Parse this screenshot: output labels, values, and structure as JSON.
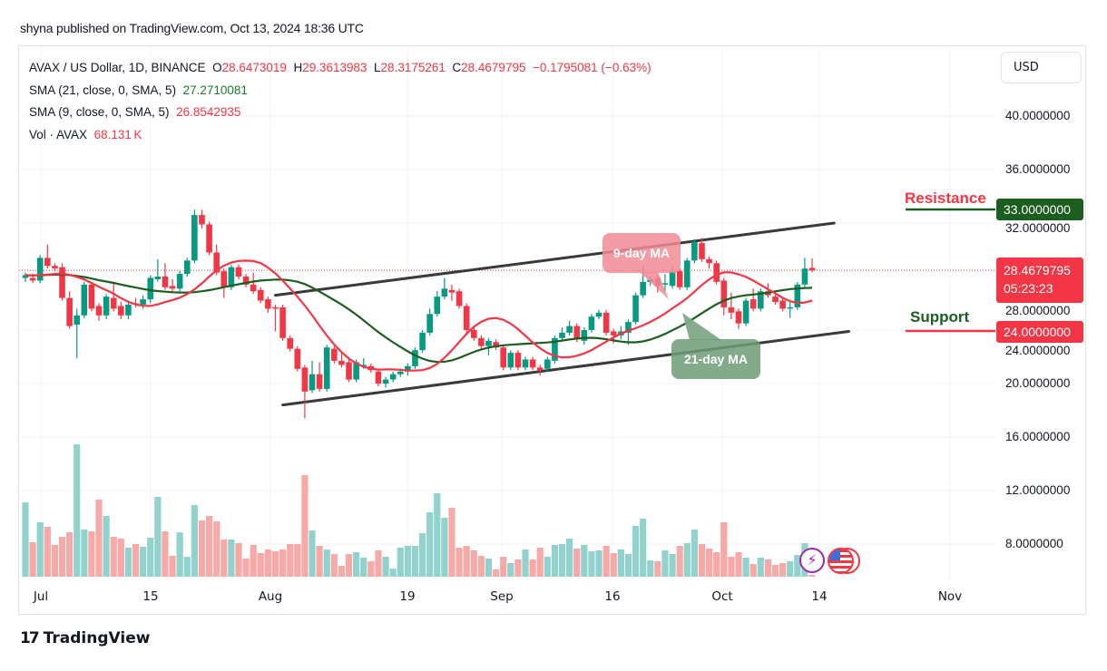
{
  "publish_line": "shyna published on TradingView.com, Oct 13, 2024 18:36 UTC",
  "legend": {
    "symbol": "AVAX / US Dollar, 1D, BINANCE",
    "open_label": "O",
    "open": "28.6473019",
    "high_label": "H",
    "high": "29.3613983",
    "low_label": "L",
    "low": "28.3175261",
    "close_label": "C",
    "close": "28.4679795",
    "change": "−0.1795081 (−0.63%)",
    "sma21_label": "SMA (21, close, 0, SMA, 5)",
    "sma21_value": "27.2710081",
    "sma9_label": "SMA (9, close, 0, SMA, 5)",
    "sma9_value": "26.8542935",
    "vol_label": "Vol · AVAX",
    "vol_value": "68.131 K"
  },
  "currency_button": "USD",
  "price_tags": {
    "resistance_value": "33.0000000",
    "current_price": "28.4679795",
    "countdown": "05:23:23",
    "support_value": "24.0000000"
  },
  "annotations": {
    "resistance_label": "Resistance",
    "support_label": "Support",
    "ma9_callout": "9-day MA",
    "ma21_callout": "21-day MA"
  },
  "brand": {
    "logo_text": "TradingView",
    "logo_mark": "17"
  },
  "icons": {
    "events": [
      "lightning-icon",
      "us-flag-icon",
      "us-flag-icon"
    ]
  },
  "colors": {
    "up": "#089981",
    "down": "#f23645",
    "vol_up": "#92d2cc",
    "vol_down": "#f7a9a7",
    "sma9": "#f23645",
    "sma21": "#1b5e20",
    "resistance_tag": "#1b5e20",
    "price_tag": "#f23645",
    "channel": "#3a3a3a"
  },
  "chart_data": {
    "type": "candlestick",
    "title": "AVAX / US Dollar, 1D, BINANCE",
    "y_ticks": [
      "40.0000000",
      "36.0000000",
      "32.0000000",
      "28.0000000",
      "24.0000000",
      "20.0000000",
      "16.0000000",
      "12.0000000",
      "8.0000000"
    ],
    "y_tick_values": [
      40,
      36,
      32,
      28,
      24,
      20,
      16,
      12,
      8
    ],
    "x_ticks": [
      "Jul",
      "15",
      "Aug",
      "19",
      "Sep",
      "16",
      "Oct",
      "14",
      "Nov"
    ],
    "ylim": [
      5.5,
      44.5
    ],
    "grid": true,
    "ohlc": [
      [
        27.9,
        28.3,
        27.6,
        28.1
      ],
      [
        27.9,
        28.2,
        27.5,
        27.7
      ],
      [
        27.7,
        29.6,
        27.5,
        29.4
      ],
      [
        29.4,
        30.4,
        28.6,
        28.8
      ],
      [
        28.8,
        29.0,
        28.4,
        28.6
      ],
      [
        28.7,
        29.0,
        26.2,
        26.4
      ],
      [
        26.4,
        26.9,
        24.1,
        24.3
      ],
      [
        24.4,
        25.6,
        21.9,
        25.1
      ],
      [
        25.1,
        27.6,
        24.9,
        27.4
      ],
      [
        27.4,
        27.6,
        25.4,
        25.6
      ],
      [
        25.8,
        26.0,
        24.7,
        25.1
      ],
      [
        25.1,
        26.7,
        24.8,
        26.5
      ],
      [
        26.4,
        27.6,
        25.4,
        25.6
      ],
      [
        25.8,
        26.1,
        24.8,
        25.1
      ],
      [
        25.1,
        26.2,
        24.8,
        25.9
      ],
      [
        26.0,
        26.4,
        25.7,
        25.9
      ],
      [
        25.9,
        26.6,
        25.6,
        26.3
      ],
      [
        26.3,
        28.1,
        26.0,
        27.9
      ],
      [
        27.8,
        29.3,
        27.6,
        28.0
      ],
      [
        28.0,
        29.0,
        27.0,
        27.2
      ],
      [
        27.3,
        27.8,
        26.8,
        27.1
      ],
      [
        27.1,
        28.4,
        26.9,
        28.2
      ],
      [
        28.2,
        29.4,
        28.0,
        29.2
      ],
      [
        29.2,
        33.0,
        29.0,
        32.6
      ],
      [
        32.6,
        33.0,
        31.6,
        31.9
      ],
      [
        31.9,
        32.1,
        29.6,
        29.8
      ],
      [
        29.8,
        30.4,
        28.1,
        28.3
      ],
      [
        28.4,
        28.6,
        26.4,
        27.2
      ],
      [
        27.2,
        28.9,
        27.0,
        28.7
      ],
      [
        28.7,
        28.9,
        27.8,
        28.0
      ],
      [
        28.0,
        28.2,
        27.2,
        27.4
      ],
      [
        27.4,
        28.3,
        26.7,
        26.9
      ],
      [
        27.0,
        27.2,
        26.0,
        26.2
      ],
      [
        26.3,
        26.5,
        25.3,
        25.6
      ],
      [
        25.7,
        25.9,
        23.9,
        25.6
      ],
      [
        25.7,
        25.9,
        23.2,
        23.4
      ],
      [
        23.4,
        23.6,
        22.4,
        22.6
      ],
      [
        22.6,
        22.8,
        20.9,
        21.1
      ],
      [
        21.2,
        21.4,
        17.4,
        19.4
      ],
      [
        19.5,
        21.7,
        19.3,
        20.7
      ],
      [
        20.7,
        21.6,
        19.4,
        19.6
      ],
      [
        19.6,
        22.9,
        19.4,
        22.7
      ],
      [
        22.6,
        22.8,
        21.5,
        21.7
      ],
      [
        21.7,
        22.3,
        21.2,
        21.4
      ],
      [
        21.6,
        21.8,
        20.1,
        20.3
      ],
      [
        20.3,
        21.8,
        20.1,
        21.6
      ],
      [
        21.3,
        21.9,
        21.1,
        21.4
      ],
      [
        21.3,
        21.5,
        20.8,
        21.0
      ],
      [
        20.9,
        21.1,
        19.8,
        20.0
      ],
      [
        20.0,
        20.5,
        19.7,
        20.3
      ],
      [
        20.3,
        20.9,
        20.1,
        20.7
      ],
      [
        20.7,
        21.1,
        20.5,
        20.9
      ],
      [
        20.9,
        21.5,
        20.6,
        21.3
      ],
      [
        21.3,
        22.7,
        21.1,
        22.5
      ],
      [
        22.5,
        24.0,
        22.3,
        23.8
      ],
      [
        23.8,
        25.6,
        23.6,
        25.2
      ],
      [
        25.2,
        26.9,
        25.0,
        26.5
      ],
      [
        26.5,
        27.9,
        26.3,
        27.1
      ],
      [
        27.0,
        27.4,
        26.2,
        26.8
      ],
      [
        26.9,
        27.1,
        25.6,
        25.8
      ],
      [
        25.8,
        26.0,
        23.8,
        24.0
      ],
      [
        24.0,
        24.2,
        23.2,
        23.4
      ],
      [
        23.4,
        23.6,
        22.6,
        22.8
      ],
      [
        22.8,
        23.4,
        22.1,
        23.2
      ],
      [
        23.1,
        23.3,
        22.5,
        22.7
      ],
      [
        22.7,
        22.9,
        21.0,
        21.2
      ],
      [
        21.2,
        22.5,
        21.0,
        22.3
      ],
      [
        22.3,
        22.5,
        21.0,
        21.2
      ],
      [
        21.2,
        22.0,
        21.0,
        21.8
      ],
      [
        21.8,
        22.0,
        21.0,
        21.2
      ],
      [
        21.2,
        21.4,
        20.6,
        21.0
      ],
      [
        21.1,
        22.0,
        20.9,
        21.8
      ],
      [
        21.7,
        23.6,
        21.5,
        23.4
      ],
      [
        23.4,
        24.2,
        23.2,
        23.8
      ],
      [
        23.8,
        24.7,
        23.6,
        24.3
      ],
      [
        24.3,
        24.5,
        23.1,
        23.3
      ],
      [
        23.2,
        24.2,
        22.9,
        24.0
      ],
      [
        24.0,
        25.2,
        23.8,
        25.0
      ],
      [
        25.0,
        25.5,
        24.8,
        25.3
      ],
      [
        25.3,
        25.5,
        23.6,
        23.8
      ],
      [
        23.9,
        24.1,
        23.0,
        23.6
      ],
      [
        23.6,
        24.3,
        23.3,
        23.9
      ],
      [
        23.8,
        24.8,
        22.9,
        24.6
      ],
      [
        24.6,
        26.8,
        24.4,
        26.6
      ],
      [
        26.6,
        28.8,
        26.4,
        27.6
      ],
      [
        27.6,
        28.0,
        27.3,
        27.8
      ],
      [
        27.9,
        28.2,
        26.8,
        27.3
      ],
      [
        27.4,
        28.2,
        26.9,
        27.5
      ],
      [
        27.3,
        28.8,
        27.1,
        28.4
      ],
      [
        28.4,
        28.6,
        27.0,
        27.2
      ],
      [
        27.2,
        29.4,
        27.0,
        29.2
      ],
      [
        29.2,
        30.8,
        29.0,
        30.6
      ],
      [
        30.5,
        30.9,
        29.1,
        29.3
      ],
      [
        29.3,
        29.5,
        28.6,
        29.0
      ],
      [
        29.0,
        29.2,
        27.4,
        27.6
      ],
      [
        27.7,
        27.9,
        25.1,
        25.7
      ],
      [
        25.7,
        26.8,
        24.8,
        25.3
      ],
      [
        25.4,
        25.6,
        24.1,
        24.5
      ],
      [
        24.5,
        26.4,
        24.3,
        26.2
      ],
      [
        26.3,
        27.1,
        25.4,
        25.6
      ],
      [
        25.6,
        27.1,
        25.4,
        26.9
      ],
      [
        26.9,
        27.5,
        26.4,
        26.6
      ],
      [
        26.5,
        26.8,
        25.9,
        26.1
      ],
      [
        26.2,
        26.4,
        25.4,
        25.6
      ],
      [
        25.6,
        26.2,
        24.9,
        25.7
      ],
      [
        25.7,
        27.6,
        25.5,
        27.4
      ],
      [
        27.4,
        29.4,
        27.2,
        28.6
      ],
      [
        28.6473019,
        29.3613983,
        28.3175261,
        28.4679795
      ]
    ],
    "volume_k": [
      2788,
      1292,
      2040,
      1870,
      1190,
      1496,
      1666,
      4964,
      1768,
      1700,
      2890,
      2278,
      1496,
      1428,
      1088,
      1224,
      1122,
      1462,
      2992,
      1700,
      782,
      1666,
      748,
      2686,
      2108,
      2278,
      2074,
      1394,
      1394,
      1258,
      680,
      1190,
      884,
      1020,
      952,
      1020,
      1224,
      1224,
      3808,
      1734,
      1156,
      1020,
      850,
      408,
      850,
      918,
      714,
      578,
      986,
      748,
      306,
      1088,
      1156,
      1156,
      1632,
      2414,
      3128,
      2210,
      2584,
      1088,
      1156,
      986,
      782,
      680,
      272,
      748,
      510,
      646,
      1020,
      646,
      1088,
      748,
      1190,
      1224,
      1428,
      1054,
      1190,
      952,
      986,
      1156,
      884,
      1020,
      850,
      1904,
      2176,
      612,
      578,
      986,
      850,
      1156,
      1258,
      1768,
      1224,
      1054,
      918,
      2040,
      748,
      918,
      714,
      476,
      714,
      646,
      442,
      510,
      578,
      816,
      1258,
      68.131
    ],
    "sma_periods": [
      9,
      21
    ],
    "sma_smoothing": 5,
    "levels": {
      "resistance": 33,
      "support": 24,
      "last_price": 28.4679795
    },
    "channel": {
      "upper": [
        [
          34,
          26.6
        ],
        [
          110,
          32.0
        ]
      ],
      "lower": [
        [
          35,
          18.4
        ],
        [
          112,
          23.9
        ]
      ]
    }
  }
}
